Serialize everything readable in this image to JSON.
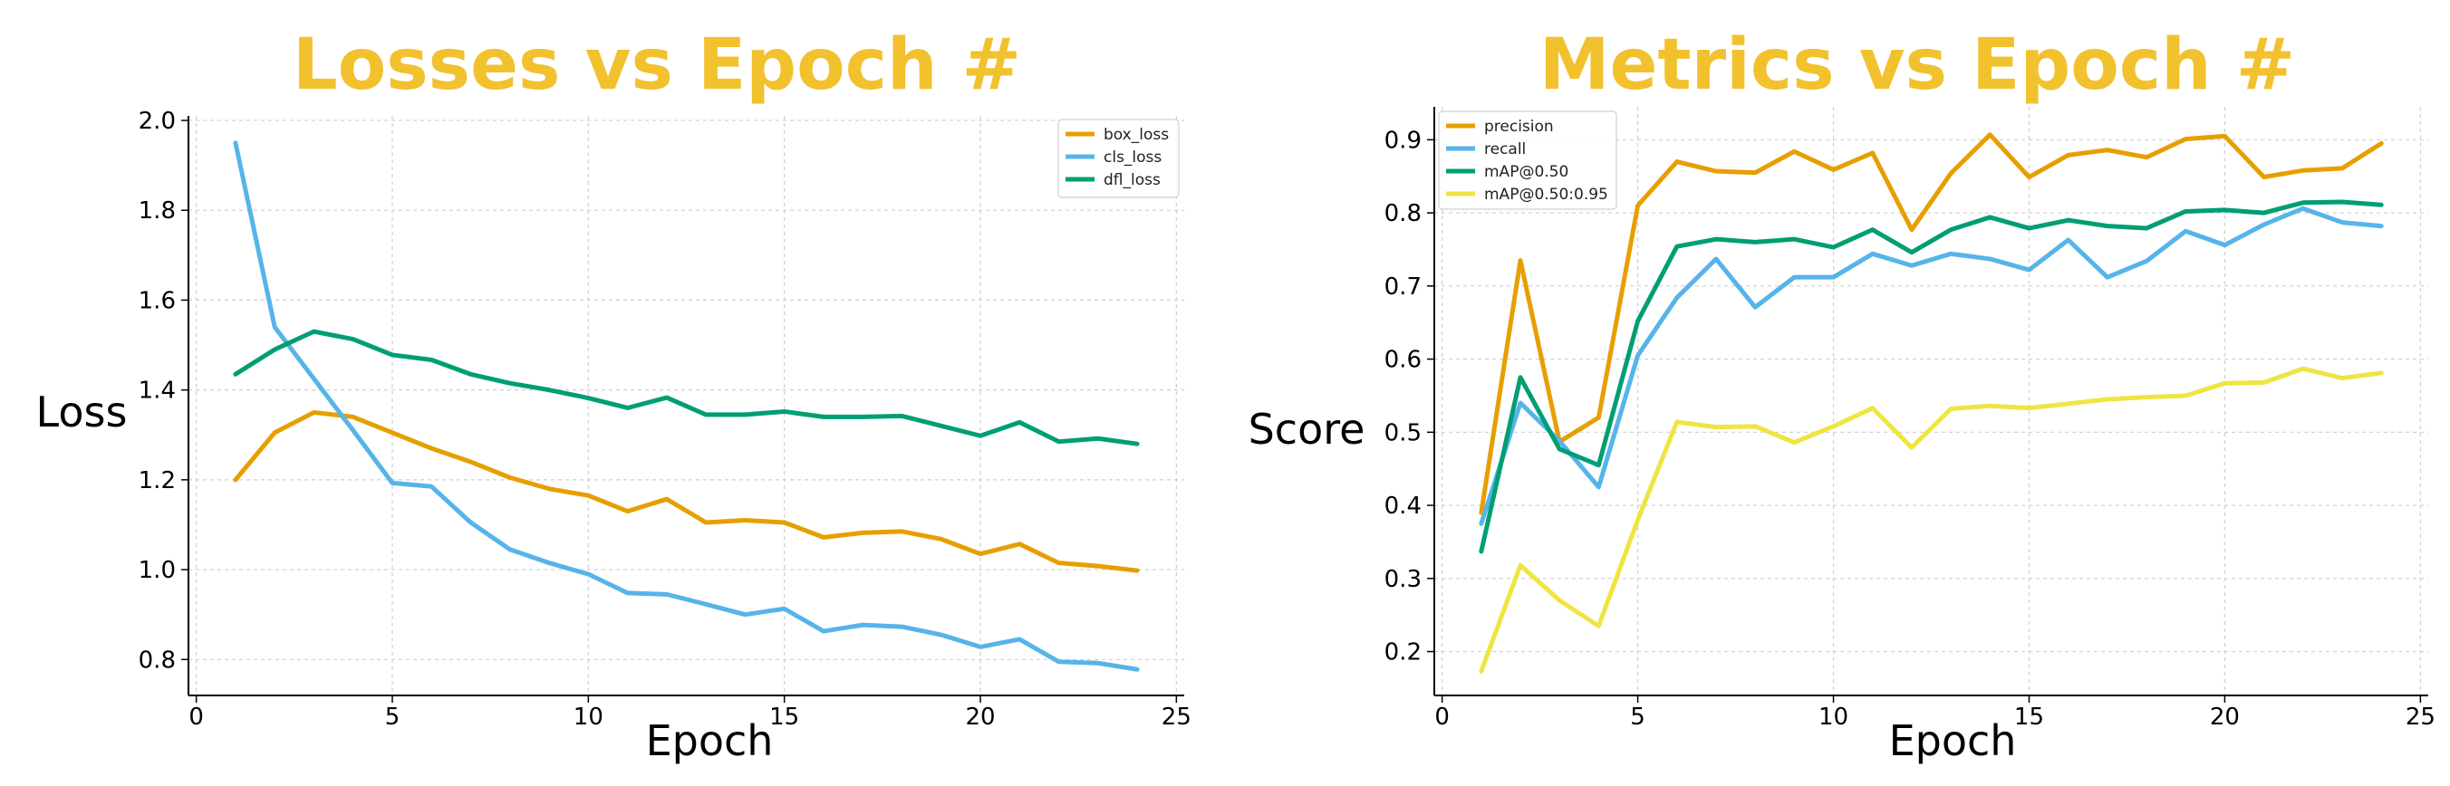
{
  "colors": {
    "title": "#F2C12E",
    "box_loss": "#E69F00",
    "cls_loss": "#56B4E9",
    "dfl_loss": "#009E73",
    "precision": "#E69F00",
    "recall": "#56B4E9",
    "map50": "#009E73",
    "map5095": "#F0E442"
  },
  "chart_data": [
    {
      "type": "line",
      "title": "Losses vs Epoch #",
      "xlabel": "Epoch",
      "ylabel": "Loss",
      "xlim": [
        -0.2,
        25.2
      ],
      "ylim": [
        0.72,
        2.01
      ],
      "xticks": [
        0,
        5,
        10,
        15,
        20,
        25
      ],
      "yticks": [
        0.8,
        1.0,
        1.2,
        1.4,
        1.6,
        1.8,
        2.0
      ],
      "xtick_labels": [
        "0",
        "5",
        "10",
        "15",
        "20",
        "25"
      ],
      "ytick_labels": [
        "0.8",
        "1.0",
        "1.2",
        "1.4",
        "1.6",
        "1.8",
        "2.0"
      ],
      "grid": true,
      "legend_position": "top-right",
      "x": [
        1,
        2,
        3,
        4,
        5,
        6,
        7,
        8,
        9,
        10,
        11,
        12,
        13,
        14,
        15,
        16,
        17,
        18,
        19,
        20,
        21,
        22,
        23,
        24
      ],
      "series": [
        {
          "name": "box_loss",
          "color": "#E69F00",
          "values": [
            1.2,
            1.305,
            1.35,
            1.34,
            1.305,
            1.27,
            1.24,
            1.205,
            1.18,
            1.165,
            1.13,
            1.157,
            1.105,
            1.11,
            1.105,
            1.072,
            1.082,
            1.085,
            1.068,
            1.035,
            1.057,
            1.015,
            1.008,
            0.998
          ]
        },
        {
          "name": "cls_loss",
          "color": "#56B4E9",
          "values": [
            1.95,
            1.54,
            1.425,
            1.31,
            1.193,
            1.185,
            1.105,
            1.045,
            1.015,
            0.99,
            0.948,
            0.945,
            0.923,
            0.9,
            0.913,
            0.863,
            0.877,
            0.873,
            0.855,
            0.828,
            0.845,
            0.795,
            0.792,
            0.778
          ]
        },
        {
          "name": "dfl_loss",
          "color": "#009E73",
          "values": [
            1.435,
            1.49,
            1.53,
            1.513,
            1.478,
            1.467,
            1.435,
            1.415,
            1.4,
            1.382,
            1.36,
            1.383,
            1.345,
            1.345,
            1.352,
            1.34,
            1.34,
            1.342,
            1.32,
            1.298,
            1.328,
            1.285,
            1.292,
            1.28
          ]
        }
      ]
    },
    {
      "type": "line",
      "title": "Metrics vs Epoch #",
      "xlabel": "Epoch",
      "ylabel": "Score",
      "xlim": [
        -0.2,
        25.2
      ],
      "ylim": [
        0.14,
        0.945
      ],
      "xticks": [
        0,
        5,
        10,
        15,
        20,
        25
      ],
      "yticks": [
        0.2,
        0.3,
        0.4,
        0.5,
        0.6,
        0.7,
        0.8,
        0.9
      ],
      "xtick_labels": [
        "0",
        "5",
        "10",
        "15",
        "20",
        "25"
      ],
      "ytick_labels": [
        "0.2",
        "0.3",
        "0.4",
        "0.5",
        "0.6",
        "0.7",
        "0.8",
        "0.9"
      ],
      "grid": true,
      "legend_position": "top-left",
      "x": [
        1,
        2,
        3,
        4,
        5,
        6,
        7,
        8,
        9,
        10,
        11,
        12,
        13,
        14,
        15,
        16,
        17,
        18,
        19,
        20,
        21,
        22,
        23,
        24
      ],
      "series": [
        {
          "name": "precision",
          "color": "#E69F00",
          "values": [
            0.39,
            0.735,
            0.487,
            0.52,
            0.81,
            0.87,
            0.857,
            0.855,
            0.884,
            0.859,
            0.882,
            0.777,
            0.854,
            0.907,
            0.849,
            0.879,
            0.886,
            0.876,
            0.901,
            0.905,
            0.849,
            0.858,
            0.861,
            0.895
          ]
        },
        {
          "name": "recall",
          "color": "#56B4E9",
          "values": [
            0.375,
            0.54,
            0.488,
            0.425,
            0.605,
            0.684,
            0.737,
            0.671,
            0.712,
            0.712,
            0.744,
            0.728,
            0.744,
            0.737,
            0.722,
            0.763,
            0.712,
            0.734,
            0.775,
            0.756,
            0.784,
            0.806,
            0.787,
            0.782
          ]
        },
        {
          "name": "mAP@0.50",
          "color": "#009E73",
          "values": [
            0.337,
            0.575,
            0.477,
            0.455,
            0.652,
            0.754,
            0.764,
            0.76,
            0.764,
            0.753,
            0.777,
            0.746,
            0.777,
            0.794,
            0.779,
            0.79,
            0.782,
            0.779,
            0.802,
            0.804,
            0.8,
            0.814,
            0.815,
            0.811
          ]
        },
        {
          "name": "mAP@0.50:0.95",
          "color": "#F0E442",
          "values": [
            0.173,
            0.318,
            0.27,
            0.235,
            0.38,
            0.514,
            0.507,
            0.508,
            0.486,
            0.508,
            0.533,
            0.479,
            0.532,
            0.536,
            0.533,
            0.539,
            0.545,
            0.548,
            0.55,
            0.567,
            0.568,
            0.587,
            0.574,
            0.581
          ]
        }
      ]
    }
  ]
}
